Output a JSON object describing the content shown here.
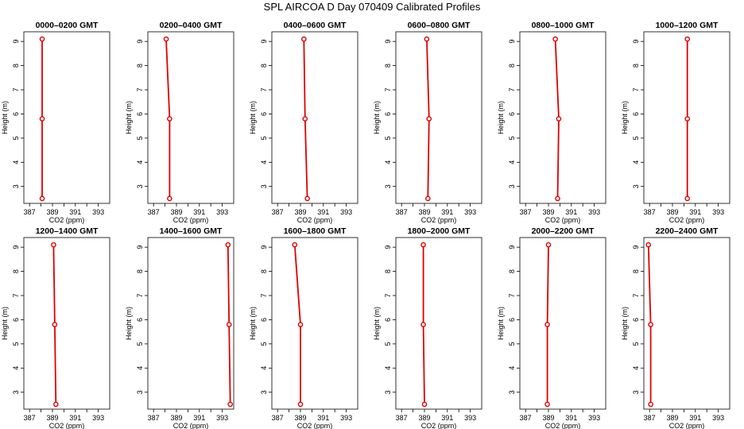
{
  "figure": {
    "title": "SPL AIRCOA D  Day 070409  Calibrated Profiles"
  },
  "colors": {
    "profile": "#dd0000",
    "axes": "#000000",
    "background": "#ffffff"
  },
  "chart_data": [
    {
      "type": "line",
      "title": "0000–0200 GMT",
      "xlabel": "CO2 (ppm)",
      "ylabel": "Height (m)",
      "xlim": [
        386.5,
        394
      ],
      "ylim": [
        2.3,
        9.4
      ],
      "xticks": [
        387,
        389,
        391,
        393
      ],
      "yticks": [
        3,
        4,
        5,
        6,
        7,
        8,
        9
      ],
      "series": [
        {
          "x": [
            388.1,
            388.1,
            388.1
          ],
          "y": [
            2.5,
            5.8,
            9.1
          ]
        }
      ]
    },
    {
      "type": "line",
      "title": "0200–0400 GMT",
      "xlabel": "CO2 (ppm)",
      "ylabel": "Height (m)",
      "xlim": [
        386.5,
        394
      ],
      "ylim": [
        2.3,
        9.4
      ],
      "xticks": [
        387,
        389,
        391,
        393
      ],
      "yticks": [
        3,
        4,
        5,
        6,
        7,
        8,
        9
      ],
      "series": [
        {
          "x": [
            388.4,
            388.4,
            388.1
          ],
          "y": [
            2.5,
            5.8,
            9.1
          ]
        }
      ]
    },
    {
      "type": "line",
      "title": "0400–0600 GMT",
      "xlabel": "CO2 (ppm)",
      "ylabel": "Height (m)",
      "xlim": [
        386.5,
        394
      ],
      "ylim": [
        2.3,
        9.4
      ],
      "xticks": [
        387,
        389,
        391,
        393
      ],
      "yticks": [
        3,
        4,
        5,
        6,
        7,
        8,
        9
      ],
      "series": [
        {
          "x": [
            389.6,
            389.4,
            389.3
          ],
          "y": [
            2.5,
            5.8,
            9.1
          ]
        }
      ]
    },
    {
      "type": "line",
      "title": "0600–0800 GMT",
      "xlabel": "CO2 (ppm)",
      "ylabel": "Height (m)",
      "xlim": [
        386.5,
        394
      ],
      "ylim": [
        2.3,
        9.4
      ],
      "xticks": [
        387,
        389,
        391,
        393
      ],
      "yticks": [
        3,
        4,
        5,
        6,
        7,
        8,
        9
      ],
      "series": [
        {
          "x": [
            389.3,
            389.4,
            389.2
          ],
          "y": [
            2.5,
            5.8,
            9.1
          ]
        }
      ]
    },
    {
      "type": "line",
      "title": "0800–1000 GMT",
      "xlabel": "CO2 (ppm)",
      "ylabel": "Height (m)",
      "xlim": [
        386.5,
        394
      ],
      "ylim": [
        2.3,
        9.4
      ],
      "xticks": [
        387,
        389,
        391,
        393
      ],
      "yticks": [
        3,
        4,
        5,
        6,
        7,
        8,
        9
      ],
      "series": [
        {
          "x": [
            389.8,
            389.9,
            389.6
          ],
          "y": [
            2.5,
            5.8,
            9.1
          ]
        }
      ]
    },
    {
      "type": "line",
      "title": "1000–1200 GMT",
      "xlabel": "CO2 (ppm)",
      "ylabel": "Height (m)",
      "xlim": [
        386.5,
        394
      ],
      "ylim": [
        2.3,
        9.4
      ],
      "xticks": [
        387,
        389,
        391,
        393
      ],
      "yticks": [
        3,
        4,
        5,
        6,
        7,
        8,
        9
      ],
      "series": [
        {
          "x": [
            390.3,
            390.3,
            390.3
          ],
          "y": [
            2.5,
            5.8,
            9.1
          ]
        }
      ]
    },
    {
      "type": "line",
      "title": "1200–1400 GMT",
      "xlabel": "CO2 (ppm)",
      "ylabel": "Height (m)",
      "xlim": [
        386.5,
        394
      ],
      "ylim": [
        2.3,
        9.4
      ],
      "xticks": [
        387,
        389,
        391,
        393
      ],
      "yticks": [
        3,
        4,
        5,
        6,
        7,
        8,
        9
      ],
      "series": [
        {
          "x": [
            389.3,
            389.2,
            389.1
          ],
          "y": [
            2.5,
            5.8,
            9.1
          ]
        }
      ]
    },
    {
      "type": "line",
      "title": "1400–1600 GMT",
      "xlabel": "CO2 (ppm)",
      "ylabel": "Height (m)",
      "xlim": [
        386.5,
        394
      ],
      "ylim": [
        2.3,
        9.4
      ],
      "xticks": [
        387,
        389,
        391,
        393
      ],
      "yticks": [
        3,
        4,
        5,
        6,
        7,
        8,
        9
      ],
      "series": [
        {
          "x": [
            393.7,
            393.6,
            393.5
          ],
          "y": [
            2.5,
            5.8,
            9.1
          ]
        }
      ]
    },
    {
      "type": "line",
      "title": "1600–1800 GMT",
      "xlabel": "CO2 (ppm)",
      "ylabel": "Height (m)",
      "xlim": [
        386.5,
        394
      ],
      "ylim": [
        2.3,
        9.4
      ],
      "xticks": [
        387,
        389,
        391,
        393
      ],
      "yticks": [
        3,
        4,
        5,
        6,
        7,
        8,
        9
      ],
      "series": [
        {
          "x": [
            389.0,
            389.0,
            388.5
          ],
          "y": [
            2.5,
            5.8,
            9.1
          ]
        }
      ]
    },
    {
      "type": "line",
      "title": "1800–2000 GMT",
      "xlabel": "CO2 (ppm)",
      "ylabel": "Height (m)",
      "xlim": [
        386.5,
        394
      ],
      "ylim": [
        2.3,
        9.4
      ],
      "xticks": [
        387,
        389,
        391,
        393
      ],
      "yticks": [
        3,
        4,
        5,
        6,
        7,
        8,
        9
      ],
      "series": [
        {
          "x": [
            389.0,
            388.9,
            388.9
          ],
          "y": [
            2.5,
            5.8,
            9.1
          ]
        }
      ]
    },
    {
      "type": "line",
      "title": "2000–2200 GMT",
      "xlabel": "CO2 (ppm)",
      "ylabel": "Height (m)",
      "xlim": [
        386.5,
        394
      ],
      "ylim": [
        2.3,
        9.4
      ],
      "xticks": [
        387,
        389,
        391,
        393
      ],
      "yticks": [
        3,
        4,
        5,
        6,
        7,
        8,
        9
      ],
      "series": [
        {
          "x": [
            388.9,
            388.9,
            389.0
          ],
          "y": [
            2.5,
            5.8,
            9.1
          ]
        }
      ]
    },
    {
      "type": "line",
      "title": "2200–2400 GMT",
      "xlabel": "CO2 (ppm)",
      "ylabel": "Height (m)",
      "xlim": [
        386.5,
        394
      ],
      "ylim": [
        2.3,
        9.4
      ],
      "xticks": [
        387,
        389,
        391,
        393
      ],
      "yticks": [
        3,
        4,
        5,
        6,
        7,
        8,
        9
      ],
      "series": [
        {
          "x": [
            387.1,
            387.1,
            386.9
          ],
          "y": [
            2.5,
            5.8,
            9.1
          ]
        }
      ]
    }
  ]
}
